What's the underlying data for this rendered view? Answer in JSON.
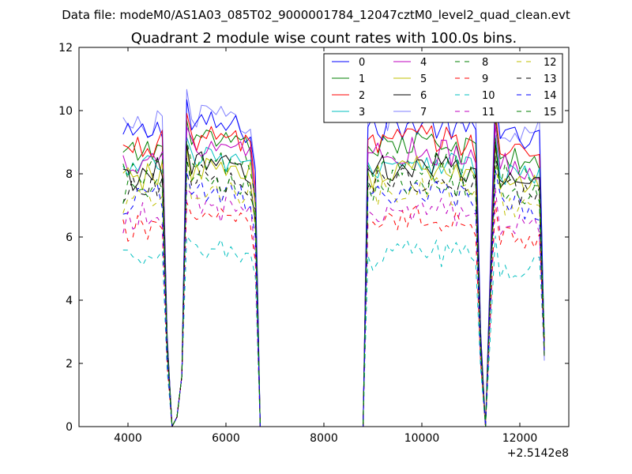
{
  "chart_data": {
    "type": "line",
    "suptitle": "Data file: modeM0/AS1A03_085T02_9000001784_12047cztM0_level2_quad_clean.evt",
    "title": "Quadrant 2 module wise count rates with 100.0s bins.",
    "xlabel": "",
    "ylabel": "",
    "x_offset_label": "+2.5142e8",
    "xlim": [
      3000,
      13000
    ],
    "ylim": [
      0,
      12
    ],
    "x_ticks": [
      4000,
      6000,
      8000,
      10000,
      12000
    ],
    "y_ticks": [
      0,
      2,
      4,
      6,
      8,
      10,
      12
    ],
    "x_tick_labels": [
      "4000",
      "6000",
      "8000",
      "10000",
      "12000"
    ],
    "y_tick_labels": [
      "0",
      "2",
      "4",
      "6",
      "8",
      "10",
      "12"
    ],
    "grid": false,
    "legend_position": "upper-right",
    "x_segments": [
      {
        "start": 3900,
        "end": 4900,
        "step": 100
      },
      {
        "start": 5000,
        "end": 6600,
        "step": 100
      },
      {
        "start": 6700,
        "end": 8800,
        "step": 100
      },
      {
        "start": 8900,
        "end": 11200,
        "step": 100
      },
      {
        "start": 11300,
        "end": 12500,
        "step": 100
      }
    ],
    "series": [
      {
        "name": "0",
        "color": "#0000ff",
        "dash": "solid",
        "level": 9.3
      },
      {
        "name": "1",
        "color": "#007f00",
        "dash": "solid",
        "level": 8.7
      },
      {
        "name": "2",
        "color": "#ff0000",
        "dash": "solid",
        "level": 8.9
      },
      {
        "name": "3",
        "color": "#00bfbf",
        "dash": "solid",
        "level": 8.2
      },
      {
        "name": "4",
        "color": "#bf00bf",
        "dash": "solid",
        "level": 8.5
      },
      {
        "name": "5",
        "color": "#bfbf00",
        "dash": "solid",
        "level": 7.9
      },
      {
        "name": "6",
        "color": "#000000",
        "dash": "solid",
        "level": 8.0
      },
      {
        "name": "7",
        "color": "#0000ff",
        "dash": "solid",
        "level": 9.6,
        "opacity": 0.5
      },
      {
        "name": "8",
        "color": "#007f00",
        "dash": "dashed",
        "level": 8.1
      },
      {
        "name": "9",
        "color": "#ff0000",
        "dash": "dashed",
        "level": 6.3
      },
      {
        "name": "10",
        "color": "#00bfbf",
        "dash": "dashed",
        "level": 5.3
      },
      {
        "name": "11",
        "color": "#bf00bf",
        "dash": "dashed",
        "level": 6.7
      },
      {
        "name": "12",
        "color": "#bfbf00",
        "dash": "dashed",
        "level": 7.3
      },
      {
        "name": "13",
        "color": "#000000",
        "dash": "dashed",
        "level": 7.6
      },
      {
        "name": "14",
        "color": "#0000ff",
        "dash": "dashed",
        "level": 7.2
      },
      {
        "name": "15",
        "color": "#007f00",
        "dash": "dashed",
        "level": 7.5
      }
    ]
  }
}
